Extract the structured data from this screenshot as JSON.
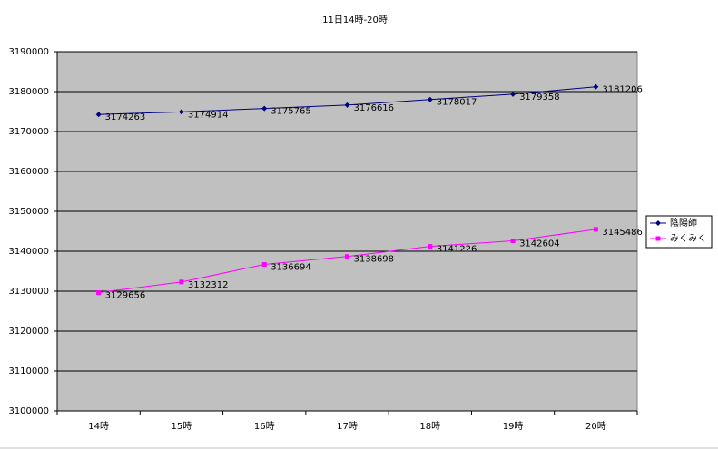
{
  "chart_data": {
    "type": "line",
    "title": "11日14時-20時",
    "categories": [
      "14時",
      "15時",
      "16時",
      "17時",
      "18時",
      "19時",
      "20時"
    ],
    "series": [
      {
        "name": "陰陽師",
        "color": "#000080",
        "marker": "diamond",
        "values": [
          3174263,
          3174914,
          3175765,
          3176616,
          3178017,
          3179358,
          3181206
        ]
      },
      {
        "name": "みくみく",
        "color": "#ff00ff",
        "marker": "square",
        "values": [
          3129656,
          3132312,
          3136694,
          3138698,
          3141226,
          3142604,
          3145486
        ]
      }
    ],
    "ylim": [
      3100000,
      3190000
    ],
    "yticks": [
      3100000,
      3110000,
      3120000,
      3130000,
      3140000,
      3150000,
      3160000,
      3170000,
      3180000,
      3190000
    ],
    "grid": true,
    "legend": "right",
    "data_labels": true
  }
}
